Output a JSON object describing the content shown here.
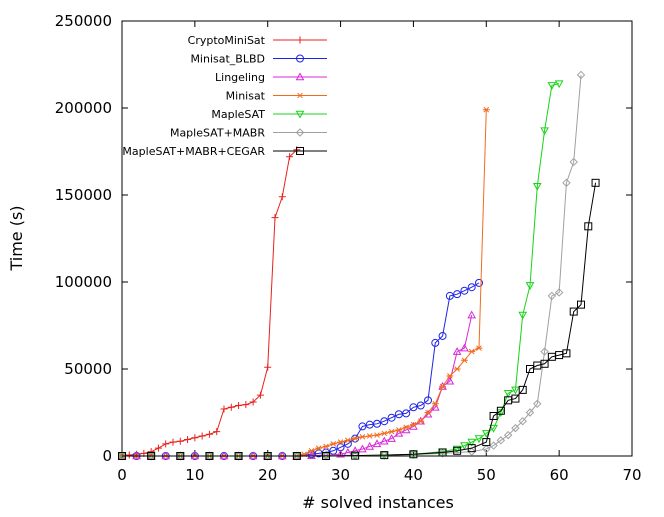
{
  "chart_data": {
    "type": "line",
    "xlabel": "# solved instances",
    "ylabel": "Time (s)",
    "xlim": [
      0,
      70
    ],
    "ylim": [
      0,
      250000
    ],
    "xticks": [
      0,
      10,
      20,
      30,
      40,
      50,
      60,
      70
    ],
    "yticks": [
      0,
      50000,
      100000,
      150000,
      200000,
      250000
    ],
    "grid": false,
    "legend": "top-left",
    "series": [
      {
        "name": "CryptoMiniSat",
        "color": "#e8211d",
        "marker": "plus",
        "x": [
          0,
          1,
          2,
          3,
          4,
          5,
          6,
          7,
          8,
          9,
          10,
          11,
          12,
          13,
          14,
          15,
          16,
          17,
          18,
          19,
          20,
          21,
          22,
          23,
          24
        ],
        "y": [
          300,
          600,
          1000,
          1500,
          2500,
          4500,
          7000,
          8000,
          8500,
          9500,
          10500,
          11500,
          12500,
          14000,
          27000,
          28000,
          29000,
          29500,
          31000,
          35000,
          51000,
          137000,
          149000,
          172000,
          176000
        ]
      },
      {
        "name": "Minisat_BLBD",
        "color": "#1f24e6",
        "marker": "circle",
        "x": [
          0,
          2,
          4,
          6,
          8,
          10,
          12,
          14,
          16,
          18,
          20,
          22,
          24,
          26,
          27,
          28,
          29,
          30,
          31,
          32,
          33,
          34,
          35,
          36,
          37,
          38,
          39,
          40,
          41,
          42,
          43,
          44,
          45,
          46,
          47,
          48,
          49
        ],
        "y": [
          0,
          0,
          0,
          0,
          0,
          0,
          0,
          0,
          0,
          0,
          0,
          0,
          0,
          1000,
          1500,
          2000,
          3000,
          5000,
          7000,
          10000,
          17000,
          18000,
          18500,
          20000,
          22000,
          24000,
          24500,
          28000,
          29000,
          32000,
          65000,
          69000,
          92000,
          93000,
          95000,
          97000,
          99500
        ]
      },
      {
        "name": "Lingeling",
        "color": "#d827d8",
        "marker": "triangle",
        "x": [
          0,
          2,
          4,
          6,
          8,
          10,
          12,
          14,
          16,
          18,
          20,
          22,
          24,
          26,
          28,
          30,
          31,
          32,
          33,
          34,
          35,
          36,
          37,
          38,
          39,
          40,
          41,
          42,
          43,
          44,
          45,
          46,
          47,
          48
        ],
        "y": [
          0,
          0,
          0,
          0,
          0,
          0,
          0,
          0,
          0,
          0,
          0,
          0,
          0,
          200,
          500,
          1000,
          2000,
          3000,
          4000,
          5500,
          7000,
          8500,
          10000,
          13000,
          15000,
          17000,
          20000,
          24000,
          28000,
          40000,
          43000,
          60000,
          62000,
          81000
        ]
      },
      {
        "name": "Minisat",
        "color": "#f26b1d",
        "marker": "asterisk",
        "x": [
          0,
          2,
          4,
          6,
          8,
          10,
          12,
          14,
          16,
          18,
          20,
          22,
          24,
          25,
          26,
          27,
          28,
          29,
          30,
          31,
          32,
          33,
          34,
          35,
          36,
          37,
          38,
          39,
          40,
          41,
          42,
          43,
          44,
          45,
          46,
          47,
          48,
          49,
          50
        ],
        "y": [
          0,
          0,
          0,
          0,
          0,
          0,
          0,
          0,
          0,
          0,
          0,
          0,
          0,
          1000,
          3000,
          4500,
          5500,
          7000,
          8000,
          9000,
          10000,
          11000,
          11500,
          12000,
          13000,
          14000,
          15000,
          16500,
          18000,
          20000,
          25000,
          30000,
          40000,
          46000,
          50000,
          55000,
          60000,
          62000,
          199000
        ]
      },
      {
        "name": "MapleSAT",
        "color": "#19d319",
        "marker": "triangle-down",
        "x": [
          0,
          4,
          8,
          12,
          16,
          20,
          24,
          28,
          32,
          36,
          40,
          44,
          46,
          47,
          48,
          49,
          50,
          51,
          52,
          53,
          54,
          55,
          56,
          57,
          58,
          59,
          60
        ],
        "y": [
          0,
          0,
          0,
          0,
          0,
          0,
          0,
          0,
          200,
          500,
          1000,
          2500,
          4000,
          6000,
          8000,
          10000,
          13000,
          16000,
          25000,
          36000,
          38000,
          81000,
          98000,
          155000,
          187000,
          213000,
          214000
        ]
      },
      {
        "name": "MapleSAT+MABR",
        "color": "#a0a0a0",
        "marker": "diamond",
        "x": [
          0,
          4,
          8,
          12,
          16,
          20,
          24,
          28,
          32,
          36,
          40,
          44,
          48,
          50,
          51,
          52,
          53,
          54,
          55,
          56,
          57,
          58,
          59,
          60,
          61,
          62,
          63
        ],
        "y": [
          0,
          0,
          0,
          0,
          0,
          0,
          0,
          0,
          200,
          400,
          800,
          1500,
          2500,
          4000,
          6000,
          9000,
          12000,
          16000,
          20000,
          25000,
          30000,
          60000,
          92000,
          94000,
          157000,
          169000,
          219000
        ]
      },
      {
        "name": "MapleSAT+MABR+CEGAR",
        "color": "#000000",
        "marker": "square",
        "x": [
          0,
          4,
          8,
          12,
          16,
          20,
          24,
          28,
          32,
          36,
          40,
          44,
          46,
          48,
          50,
          51,
          52,
          53,
          54,
          55,
          56,
          57,
          58,
          59,
          60,
          61,
          62,
          63,
          64,
          65
        ],
        "y": [
          0,
          0,
          0,
          0,
          0,
          0,
          0,
          0,
          200,
          500,
          1000,
          2000,
          3000,
          4500,
          8000,
          23000,
          26000,
          32000,
          33000,
          38000,
          50000,
          52000,
          53000,
          57000,
          58000,
          59000,
          83000,
          87000,
          132000,
          157000
        ]
      }
    ]
  }
}
